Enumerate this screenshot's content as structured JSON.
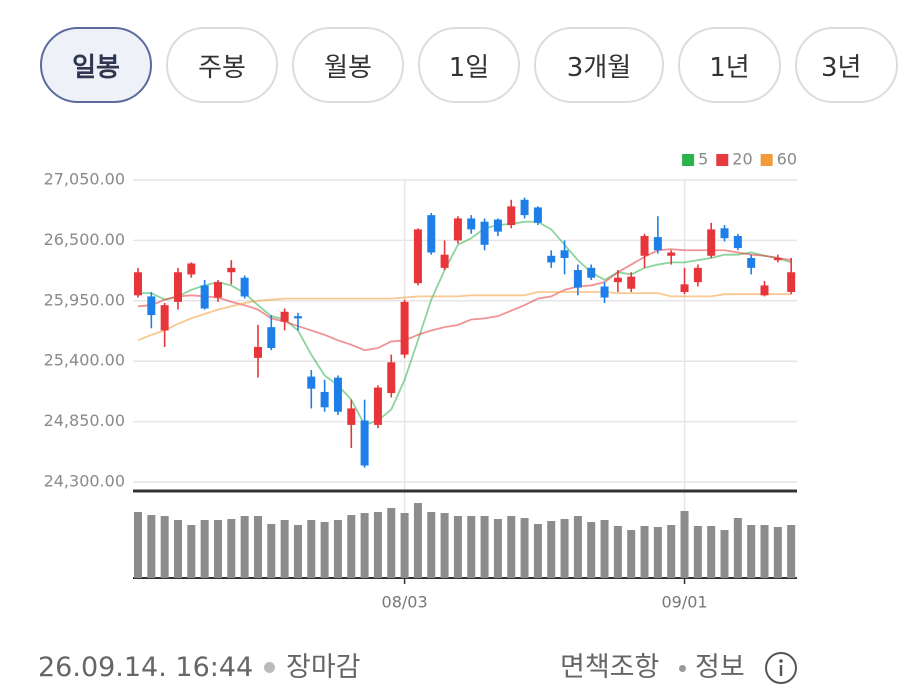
{
  "tabs": [
    "일봉",
    "주봉",
    "월봉",
    "1일",
    "3개월",
    "1년",
    "3년"
  ],
  "chart_data": {
    "type": "candlestick",
    "categories": [
      null,
      null,
      null,
      null,
      null,
      null,
      null,
      null,
      null,
      null,
      null,
      null,
      null,
      null,
      null,
      null,
      null,
      null,
      null,
      null,
      "08/03",
      null,
      null,
      null,
      null,
      null,
      null,
      null,
      null,
      null,
      null,
      null,
      null,
      null,
      null,
      null,
      null,
      null,
      null,
      null,
      null,
      "09/01",
      null,
      null,
      null,
      null,
      null,
      null,
      null,
      null
    ],
    "open": [
      26000,
      25990,
      25680,
      25940,
      26190,
      26090,
      25980,
      26210,
      26160,
      25430,
      25710,
      25760,
      25810,
      25260,
      25120,
      25250,
      24820,
      24860,
      24820,
      25110,
      25460,
      26110,
      26730,
      26250,
      26500,
      26700,
      26670,
      26690,
      26640,
      26870,
      26800,
      26360,
      26410,
      26230,
      26250,
      26080,
      26120,
      26060,
      26360,
      26530,
      26360,
      26030,
      26120,
      26360,
      26610,
      26540,
      26340,
      26000,
      26320,
      26030
    ],
    "high": [
      26250,
      26030,
      25930,
      26250,
      26300,
      26140,
      26140,
      26320,
      26180,
      25730,
      25820,
      25880,
      25840,
      25320,
      25230,
      25270,
      25050,
      25050,
      25180,
      25460,
      25960,
      26610,
      26750,
      26500,
      26720,
      26730,
      26700,
      26700,
      26870,
      26890,
      26810,
      26410,
      26500,
      26280,
      26280,
      26120,
      26230,
      26210,
      26560,
      26720,
      26410,
      26250,
      26280,
      26660,
      26640,
      26560,
      26370,
      26130,
      26370,
      26340
    ],
    "low": [
      25980,
      25700,
      25530,
      25870,
      26160,
      25870,
      25940,
      26100,
      25970,
      25250,
      25500,
      25680,
      25680,
      24970,
      24940,
      24910,
      24610,
      24430,
      24790,
      25070,
      25430,
      26090,
      26370,
      26230,
      26470,
      26560,
      26410,
      26540,
      26610,
      26700,
      26640,
      26250,
      26190,
      26000,
      26140,
      25930,
      26030,
      26030,
      26250,
      26380,
      26280,
      26010,
      26080,
      26340,
      26490,
      26410,
      26190,
      25990,
      26300,
      26010
    ],
    "close": [
      26210,
      25820,
      25910,
      26210,
      26290,
      25880,
      26120,
      26250,
      25990,
      25530,
      25520,
      25850,
      25790,
      25150,
      24980,
      24940,
      24970,
      24450,
      25160,
      25390,
      25940,
      26600,
      26390,
      26370,
      26700,
      26600,
      26460,
      26580,
      26810,
      26730,
      26660,
      26300,
      26340,
      26070,
      26160,
      25980,
      26160,
      26170,
      26540,
      26410,
      26390,
      26100,
      26250,
      26600,
      26520,
      26430,
      26250,
      26090,
      26340,
      26210
    ],
    "up_color": "#e8353b",
    "down_color": "#1f7fe8",
    "series": [
      {
        "name": "5",
        "color": "#2bb24c",
        "values": [
          26020,
          26020,
          25960,
          25990,
          26050,
          26090,
          26120,
          26090,
          26020,
          25910,
          25810,
          25780,
          25680,
          25460,
          25270,
          25180,
          25050,
          24820,
          24860,
          24960,
          25230,
          25590,
          25960,
          26230,
          26460,
          26520,
          26610,
          26640,
          26650,
          26670,
          26670,
          26600,
          26460,
          26320,
          26210,
          26140,
          26210,
          26190,
          26250,
          26280,
          26300,
          26300,
          26320,
          26340,
          26370,
          26370,
          26390,
          26360,
          26340,
          26300
        ]
      },
      {
        "name": "20",
        "color": "#e53940",
        "values": [
          25900,
          25910,
          25960,
          25990,
          26000,
          25990,
          25980,
          25940,
          25910,
          25870,
          25790,
          25760,
          25720,
          25680,
          25640,
          25590,
          25550,
          25500,
          25520,
          25580,
          25590,
          25640,
          25680,
          25710,
          25730,
          25780,
          25790,
          25810,
          25860,
          25910,
          25970,
          25990,
          26050,
          26080,
          26090,
          26120,
          26210,
          26280,
          26350,
          26410,
          26420,
          26410,
          26410,
          26410,
          26410,
          26390,
          26370,
          26360,
          26340,
          26320
        ]
      },
      {
        "name": "60",
        "color": "#f39a3a",
        "values": [
          25590,
          25640,
          25680,
          25740,
          25790,
          25830,
          25870,
          25900,
          25930,
          25950,
          25960,
          25970,
          25970,
          25970,
          25970,
          25970,
          25970,
          25970,
          25970,
          25970,
          25980,
          25990,
          25990,
          25990,
          25990,
          26000,
          26000,
          26000,
          26000,
          26000,
          26030,
          26030,
          26030,
          26030,
          26030,
          26030,
          26020,
          26020,
          26020,
          26020,
          25990,
          25990,
          25990,
          25990,
          26010,
          26010,
          26010,
          26010,
          26010,
          26010
        ]
      }
    ],
    "volume": [
      66,
      63,
      62,
      58,
      53,
      58,
      58,
      59,
      62,
      62,
      54,
      58,
      53,
      58,
      56,
      58,
      63,
      65,
      66,
      70,
      65,
      75,
      66,
      65,
      62,
      62,
      62,
      59,
      62,
      60,
      54,
      57,
      59,
      62,
      56,
      58,
      52,
      48,
      52,
      51,
      53,
      67,
      52,
      52,
      48,
      60,
      53,
      53,
      51,
      53
    ],
    "volume_color": "#8c8c8c",
    "vlim": [
      0,
      86
    ],
    "ylim": [
      24300,
      27050
    ],
    "yticks": [
      {
        "value": 24300,
        "label": "24,300.00"
      },
      {
        "value": 24850,
        "label": "24,850.00"
      },
      {
        "value": 25400,
        "label": "25,400.00"
      },
      {
        "value": 25950,
        "label": "25,950.00"
      },
      {
        "value": 26500,
        "label": "26,500.00"
      },
      {
        "value": 27050,
        "label": "27,050.00"
      }
    ],
    "grid": true,
    "legend": "top-right"
  },
  "footer": {
    "timestamp": "26.09.14. 16:44",
    "status": "장마감",
    "disclaimer": "면책조항",
    "info": "정보"
  }
}
